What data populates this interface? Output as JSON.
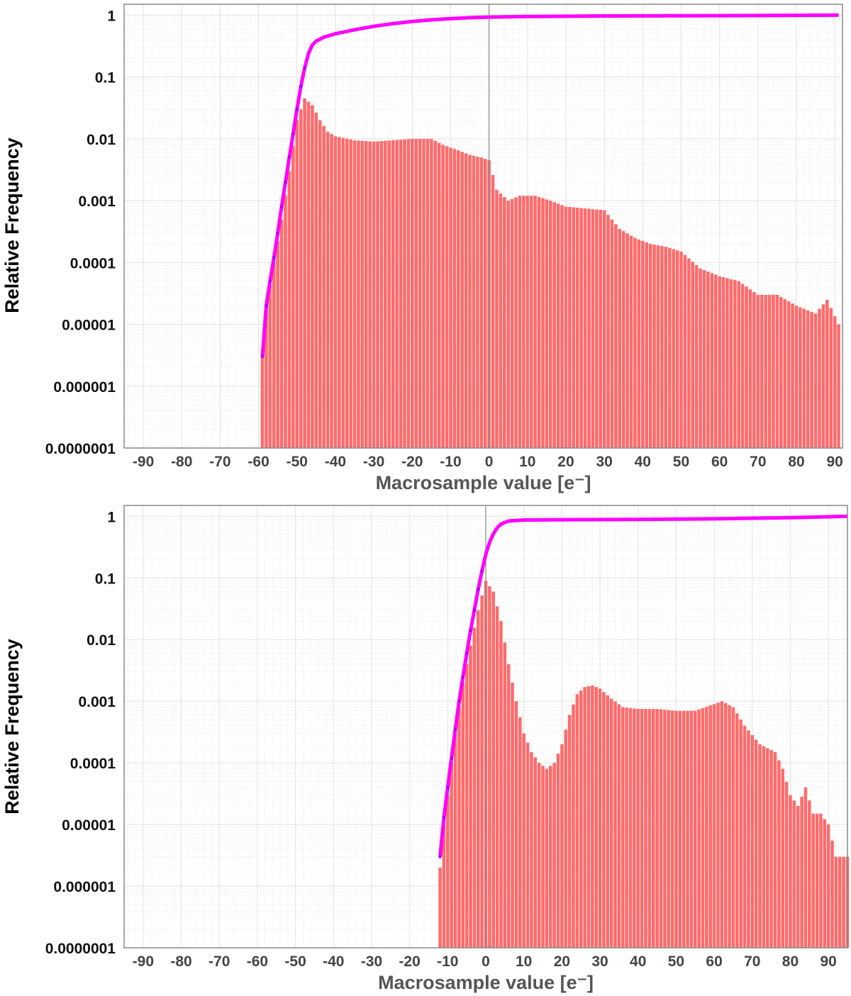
{
  "colors": {
    "bars": "#ff6b6b",
    "cumulative_line": "#ff00ff",
    "zero_line": "#888888",
    "grid": "#e2e2e2",
    "frame": "#888888"
  },
  "chart_data": [
    {
      "type": "bar",
      "title": "",
      "xlabel": "Macrosample value [e⁻]",
      "ylabel": "Relative Frequency",
      "yscale": "log",
      "xlim": [
        -95,
        92
      ],
      "ylim": [
        1e-07,
        1.5
      ],
      "grid": true,
      "x_ticks": [
        "-90",
        "-80",
        "-70",
        "-60",
        "-50",
        "-40",
        "-30",
        "-20",
        "-10",
        "0",
        "10",
        "20",
        "30",
        "40",
        "50",
        "60",
        "70",
        "80",
        "90"
      ],
      "y_ticks": [
        "1",
        "0.1",
        "0.01",
        "0.001",
        "0.0001",
        "0.00001",
        "0.000001",
        "0.0000001"
      ],
      "histogram_envelope": {
        "x": [
          -59,
          -58,
          -56,
          -54,
          -52,
          -50,
          -48,
          -46,
          -44,
          -42,
          -40,
          -35,
          -30,
          -25,
          -20,
          -15,
          -12,
          -8,
          -5,
          -2,
          0,
          2,
          5,
          8,
          12,
          16,
          20,
          25,
          30,
          34,
          38,
          42,
          46,
          50,
          55,
          60,
          65,
          70,
          75,
          80,
          85,
          88,
          91
        ],
        "y": [
          3e-06,
          2e-05,
          0.0001,
          0.0005,
          0.003,
          0.02,
          0.045,
          0.035,
          0.02,
          0.013,
          0.011,
          0.0095,
          0.009,
          0.0095,
          0.01,
          0.01,
          0.008,
          0.0065,
          0.0055,
          0.005,
          0.0045,
          0.0015,
          0.001,
          0.0012,
          0.0012,
          0.001,
          0.0008,
          0.00075,
          0.0007,
          0.00035,
          0.00025,
          0.0002,
          0.00018,
          0.00015,
          8e-05,
          6e-05,
          5e-05,
          3e-05,
          3e-05,
          2e-05,
          1.5e-05,
          2.5e-05,
          1e-05
        ]
      },
      "cumulative": {
        "x": [
          -59,
          -58,
          -57,
          -56,
          -55,
          -54,
          -53,
          -52,
          -51,
          -50,
          -49,
          -48,
          -47,
          -46,
          -45,
          -43,
          -40,
          -35,
          -30,
          -25,
          -20,
          -15,
          -10,
          -5,
          0,
          10,
          30,
          60,
          91
        ],
        "y": [
          3e-06,
          2e-05,
          5e-05,
          0.00012,
          0.0003,
          0.0008,
          0.002,
          0.005,
          0.012,
          0.03,
          0.07,
          0.14,
          0.24,
          0.33,
          0.38,
          0.44,
          0.5,
          0.58,
          0.66,
          0.73,
          0.79,
          0.84,
          0.88,
          0.91,
          0.93,
          0.95,
          0.97,
          0.98,
          1.0
        ]
      }
    },
    {
      "type": "bar",
      "title": "",
      "xlabel": "Macrosample value [e⁻]",
      "ylabel": "Relative Frequency",
      "yscale": "log",
      "xlim": [
        -95,
        95
      ],
      "ylim": [
        1e-07,
        1.5
      ],
      "grid": true,
      "x_ticks": [
        "-90",
        "-80",
        "-70",
        "-60",
        "-50",
        "-40",
        "-30",
        "-20",
        "-10",
        "0",
        "10",
        "20",
        "30",
        "40",
        "50",
        "60",
        "70",
        "80",
        "90"
      ],
      "y_ticks": [
        "1",
        "0.1",
        "0.01",
        "0.001",
        "0.0001",
        "0.00001",
        "0.000001",
        "0.0000001"
      ],
      "histogram_envelope": {
        "x": [
          -12,
          -11,
          -10,
          -9,
          -8,
          -6,
          -4,
          -2,
          0,
          2,
          4,
          6,
          8,
          10,
          12,
          14,
          16,
          18,
          20,
          22,
          24,
          26,
          28,
          30,
          33,
          36,
          40,
          45,
          50,
          55,
          60,
          62,
          65,
          68,
          72,
          76,
          78,
          80,
          82,
          84,
          86,
          88,
          90,
          92,
          95
        ],
        "y": [
          2e-06,
          1e-05,
          3e-05,
          0.0001,
          0.0003,
          0.002,
          0.008,
          0.03,
          0.09,
          0.06,
          0.02,
          0.004,
          0.001,
          0.0003,
          0.00015,
          0.0001,
          8e-05,
          0.0001,
          0.0002,
          0.0006,
          0.0013,
          0.0017,
          0.0018,
          0.0016,
          0.0011,
          0.0008,
          0.00075,
          0.00075,
          0.0007,
          0.0007,
          0.0009,
          0.001,
          0.0008,
          0.0004,
          0.0002,
          0.00015,
          8e-05,
          3e-05,
          2e-05,
          4e-05,
          1.5e-05,
          1.5e-05,
          1e-05,
          3e-06,
          3e-06
        ]
      },
      "cumulative": {
        "x": [
          -12,
          -11,
          -10,
          -9,
          -8,
          -7,
          -6,
          -5,
          -4,
          -3,
          -2,
          -1,
          0,
          1,
          2,
          3,
          4,
          6,
          10,
          20,
          40,
          60,
          80,
          95
        ],
        "y": [
          3e-06,
          1.3e-05,
          4e-05,
          0.00012,
          0.00035,
          0.001,
          0.0025,
          0.006,
          0.014,
          0.03,
          0.065,
          0.13,
          0.24,
          0.38,
          0.52,
          0.65,
          0.75,
          0.84,
          0.87,
          0.88,
          0.89,
          0.91,
          0.95,
          1.0
        ]
      }
    }
  ]
}
